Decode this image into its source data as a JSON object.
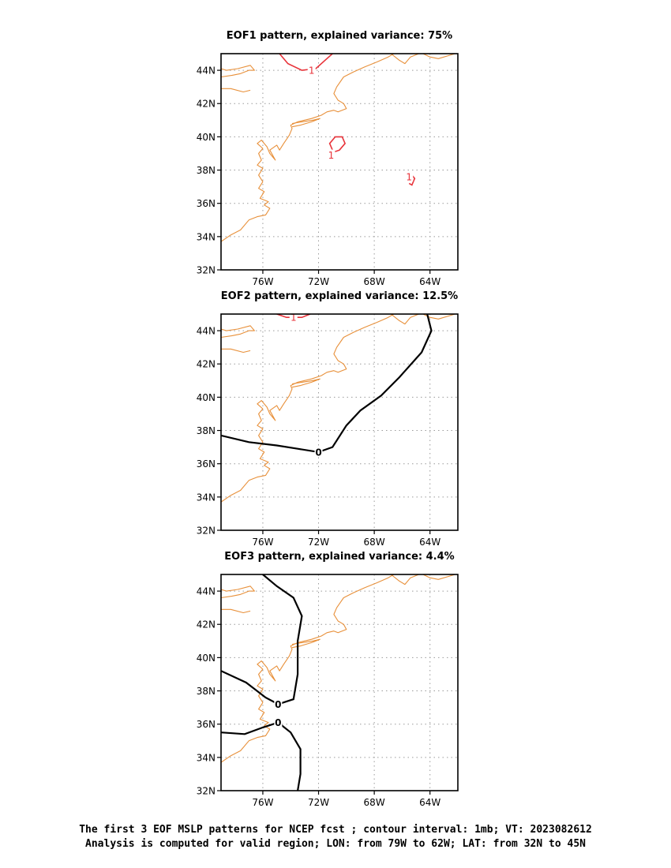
{
  "panels": [
    {
      "title": "EOF1 pattern, explained variance: 75%",
      "contours": [
        {
          "value": "1",
          "style": "positive",
          "line": [
            [
              -74.8,
              45
            ],
            [
              -74.2,
              44.4
            ],
            [
              -73.2,
              44.0
            ],
            [
              -72.2,
              44.1
            ],
            [
              -71.4,
              44.7
            ],
            [
              -71.0,
              45
            ]
          ],
          "label_at": [
            -72.5,
            44.0
          ]
        },
        {
          "value": "1",
          "style": "positive",
          "line": [
            [
              -71.2,
              39.0
            ],
            [
              -70.5,
              39.2
            ],
            [
              -70.1,
              39.6
            ],
            [
              -70.3,
              40.0
            ],
            [
              -70.8,
              40.0
            ],
            [
              -71.2,
              39.6
            ],
            [
              -71.0,
              39.2
            ]
          ],
          "label_at": [
            -71.1,
            38.9
          ]
        },
        {
          "value": "1",
          "style": "positive",
          "line": [
            [
              -65.4,
              37.8
            ],
            [
              -65.1,
              37.5
            ],
            [
              -65.3,
              37.1
            ],
            [
              -65.5,
              37.2
            ]
          ],
          "label_at": [
            -65.5,
            37.6
          ]
        }
      ]
    },
    {
      "title": "EOF2 pattern, explained variance: 12.5%",
      "contours": [
        {
          "value": "1",
          "style": "positive",
          "line": [
            [
              -75.0,
              45
            ],
            [
              -74.3,
              44.8
            ],
            [
              -73.2,
              44.8
            ],
            [
              -72.6,
              45
            ]
          ],
          "label_at": [
            -73.8,
            44.8
          ]
        },
        {
          "value": "0",
          "style": "zero",
          "line": [
            [
              -79,
              37.7
            ],
            [
              -77,
              37.3
            ],
            [
              -75,
              37.1
            ],
            [
              -73.5,
              36.9
            ],
            [
              -72.0,
              36.7
            ],
            [
              -71.0,
              37.0
            ],
            [
              -70.0,
              38.3
            ],
            [
              -69.0,
              39.2
            ],
            [
              -67.5,
              40.1
            ],
            [
              -66.2,
              41.2
            ],
            [
              -64.6,
              42.7
            ],
            [
              -63.9,
              44.0
            ],
            [
              -64.2,
              45
            ]
          ],
          "label_at": [
            -72.0,
            36.7
          ]
        }
      ]
    },
    {
      "title": "EOF3 pattern, explained variance: 4.4%",
      "contours": [
        {
          "value": "0",
          "style": "zero",
          "line": [
            [
              -76.0,
              45
            ],
            [
              -75.0,
              44.3
            ],
            [
              -73.8,
              43.6
            ],
            [
              -73.2,
              42.5
            ],
            [
              -73.5,
              41.0
            ],
            [
              -73.5,
              39.0
            ],
            [
              -73.8,
              37.5
            ],
            [
              -74.9,
              37.2
            ],
            [
              -75.8,
              37.6
            ],
            [
              -77.2,
              38.5
            ],
            [
              -79,
              39.2
            ]
          ],
          "label_at": [
            -74.9,
            37.2
          ]
        },
        {
          "value": "0",
          "style": "zero",
          "line": [
            [
              -79,
              35.5
            ],
            [
              -77.3,
              35.4
            ],
            [
              -76.0,
              35.8
            ],
            [
              -74.9,
              36.1
            ],
            [
              -74.0,
              35.5
            ],
            [
              -73.3,
              34.5
            ],
            [
              -73.3,
              33.0
            ],
            [
              -73.5,
              32
            ]
          ],
          "label_at": [
            -74.9,
            36.1
          ]
        }
      ]
    }
  ],
  "footer": {
    "line1": "The first 3 EOF MSLP patterns for NCEP fcst ; contour interval: 1mb; VT: 2023082612",
    "line2": "Analysis is computed for valid region; LON: from 79W to 62W; LAT: from 32N to 45N"
  },
  "map": {
    "lon_range": [
      -79,
      -62
    ],
    "lat_range": [
      32,
      45
    ],
    "lon_ticks": [
      -76,
      -72,
      -68,
      -64
    ],
    "lon_tick_labels": [
      "76W",
      "72W",
      "68W",
      "64W"
    ],
    "lat_ticks": [
      32,
      34,
      36,
      38,
      40,
      42,
      44
    ],
    "lat_tick_labels": [
      "32N",
      "34N",
      "36N",
      "38N",
      "40N",
      "42N",
      "44N"
    ],
    "coastline_color": "#e8903a",
    "zero_contour_color": "#000000",
    "positive_contour_color": "#e8333a",
    "grid": true
  }
}
